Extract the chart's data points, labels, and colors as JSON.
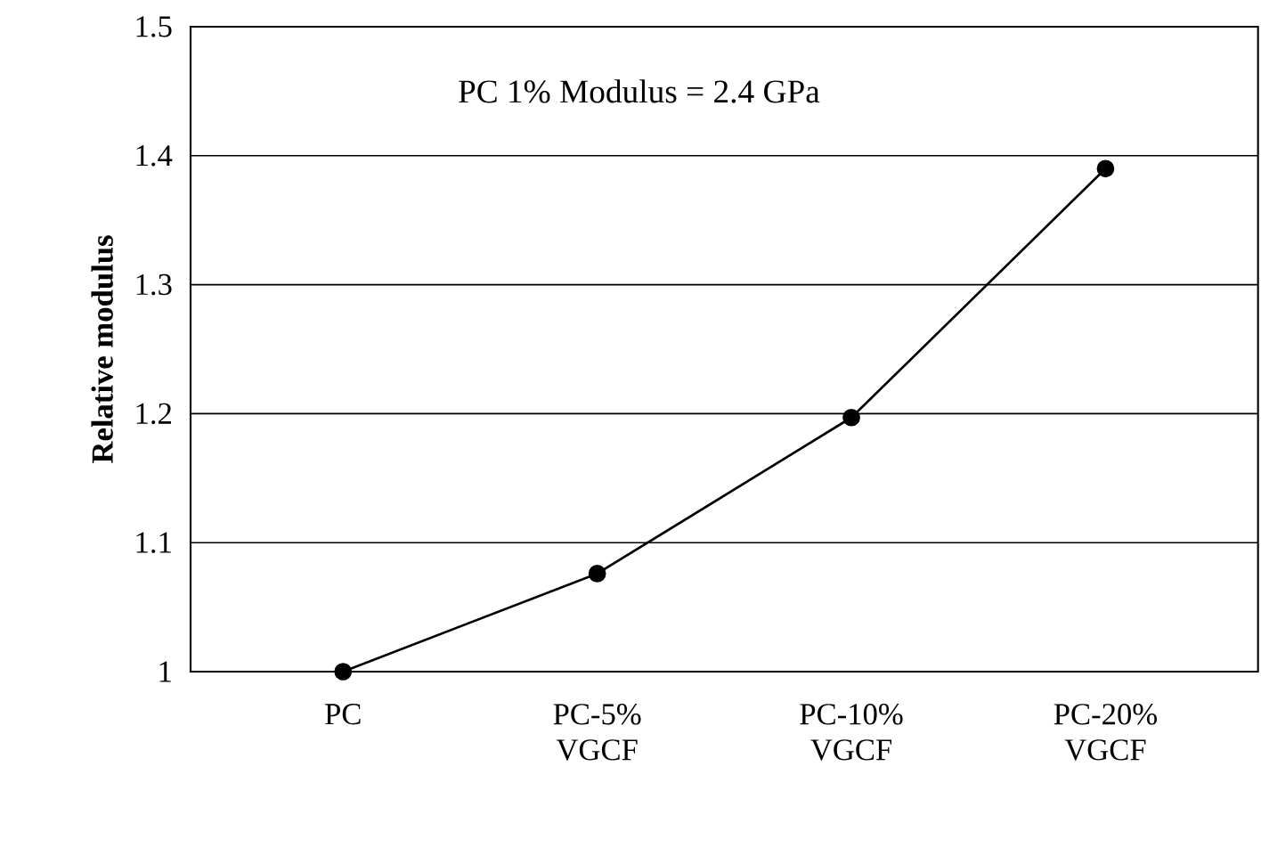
{
  "chart_data": {
    "type": "line",
    "ylabel": "Relative modulus",
    "annotations": [
      "PC 1% Modulus = 2.4 GPa"
    ],
    "categories": [
      "PC",
      "PC-5% VGCF",
      "PC-10% VGCF",
      "PC-20% VGCF"
    ],
    "series": [
      {
        "color": "#000000",
        "values": [
          1.0,
          1.076,
          1.197,
          1.39
        ]
      }
    ],
    "ylim": [
      1,
      1.5
    ],
    "yticks": [
      1,
      1.1,
      1.2,
      1.3,
      1.4,
      1.5
    ],
    "grid": "y",
    "marker": "circle",
    "line_style": "solid"
  }
}
